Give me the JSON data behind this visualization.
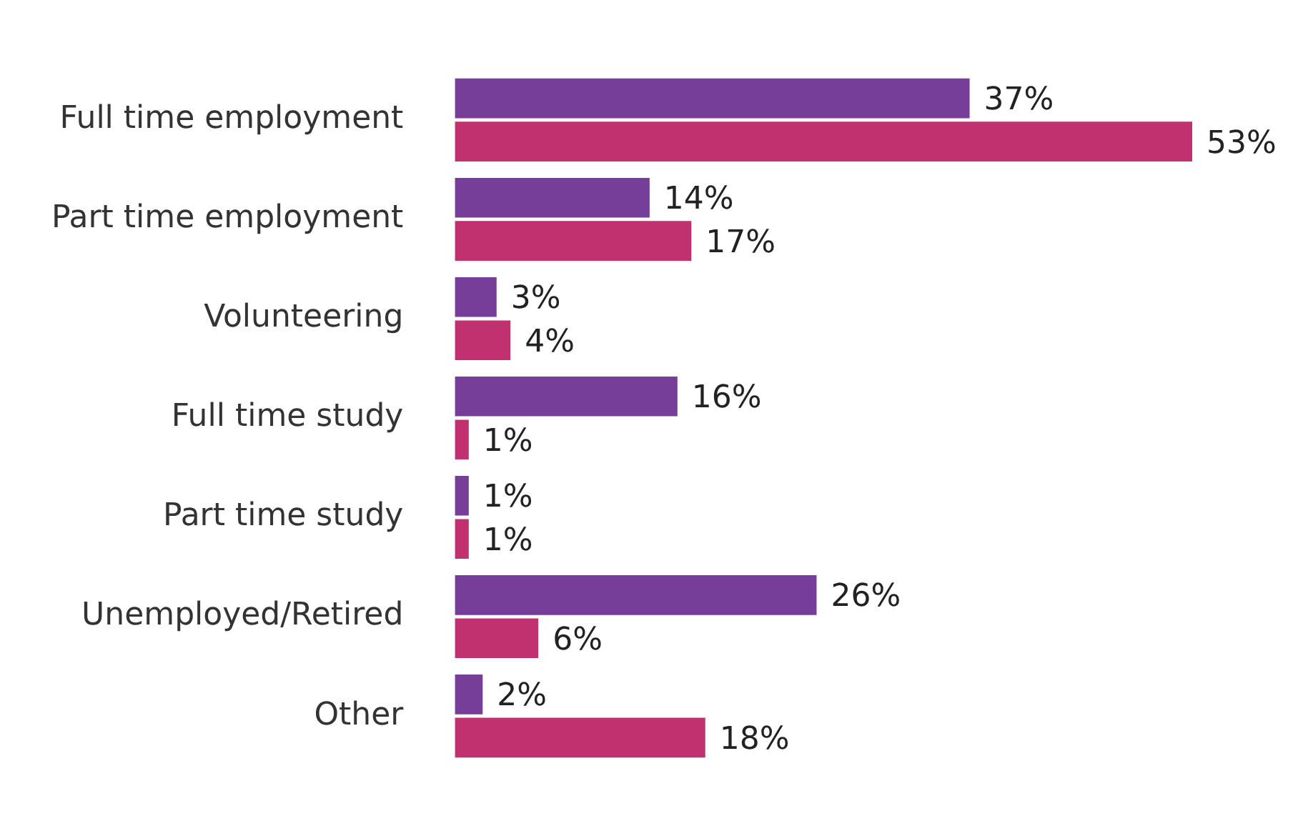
{
  "chart_data": {
    "type": "bar",
    "orientation": "horizontal",
    "categories": [
      "Full time employment",
      "Part time employment",
      "Volunteering",
      "Full time study",
      "Part time study",
      "Unemployed/Retired",
      "Other"
    ],
    "series": [
      {
        "color": "#763d99",
        "values": [
          37,
          14,
          3,
          16,
          1,
          26,
          2
        ],
        "value_labels": [
          "37%",
          "14%",
          "3%",
          "16%",
          "1%",
          "26%",
          "2%"
        ]
      },
      {
        "color": "#c1306f",
        "values": [
          53,
          17,
          4,
          1,
          1,
          6,
          18
        ],
        "value_labels": [
          "53%",
          "17%",
          "4%",
          "1%",
          "1%",
          "6%",
          "18%"
        ]
      }
    ],
    "grid": false,
    "legend": false
  }
}
